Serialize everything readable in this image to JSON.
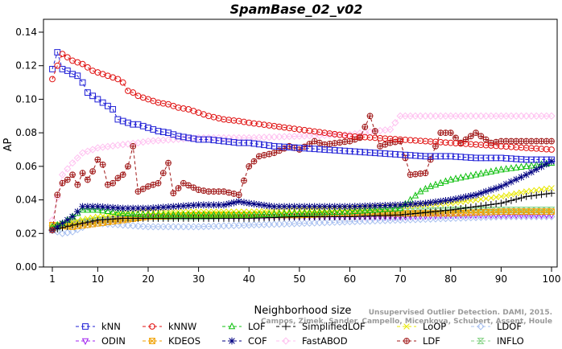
{
  "chart_data": {
    "type": "line",
    "title": "SpamBase_02_v02",
    "xlabel": "Neighborhood size",
    "ylabel": "AP",
    "xlim": [
      1,
      100
    ],
    "ylim": [
      0.0,
      0.14
    ],
    "xticks": [
      "1",
      "10",
      "20",
      "30",
      "40",
      "50",
      "60",
      "70",
      "80",
      "90",
      "100"
    ],
    "yticks": [
      "0.00",
      "0.02",
      "0.04",
      "0.06",
      "0.08",
      "0.10",
      "0.12",
      "0.14"
    ],
    "watermark": [
      "Campos, Zimek, Sander, Campello, Micenkova, Schubert, Assent, Houle",
      "Unsupervised Outlier Detection. DAMI, 2015."
    ],
    "legend_position": "bottom",
    "series": [
      {
        "name": "kNN",
        "color": "#1f1fd6",
        "marker": "square",
        "points": [
          [
            1,
            0.118
          ],
          [
            2,
            0.128
          ],
          [
            3,
            0.118
          ],
          [
            4,
            0.117
          ],
          [
            5,
            0.115
          ],
          [
            6,
            0.114
          ],
          [
            7,
            0.11
          ],
          [
            8,
            0.104
          ],
          [
            9,
            0.102
          ],
          [
            10,
            0.1
          ],
          [
            11,
            0.098
          ],
          [
            12,
            0.096
          ],
          [
            13,
            0.094
          ],
          [
            14,
            0.088
          ],
          [
            15,
            0.087
          ],
          [
            16,
            0.086
          ],
          [
            17,
            0.085
          ],
          [
            18,
            0.085
          ],
          [
            19,
            0.084
          ],
          [
            20,
            0.083
          ],
          [
            22,
            0.081
          ],
          [
            24,
            0.08
          ],
          [
            26,
            0.078
          ],
          [
            28,
            0.077
          ],
          [
            30,
            0.076
          ],
          [
            32,
            0.076
          ],
          [
            35,
            0.075
          ],
          [
            38,
            0.074
          ],
          [
            40,
            0.074
          ],
          [
            45,
            0.072
          ],
          [
            50,
            0.071
          ],
          [
            55,
            0.07
          ],
          [
            60,
            0.069
          ],
          [
            65,
            0.068
          ],
          [
            70,
            0.067
          ],
          [
            75,
            0.066
          ],
          [
            80,
            0.066
          ],
          [
            85,
            0.065
          ],
          [
            90,
            0.065
          ],
          [
            95,
            0.064
          ],
          [
            100,
            0.064
          ]
        ]
      },
      {
        "name": "kNNW",
        "color": "#e01010",
        "marker": "circle",
        "points": [
          [
            1,
            0.112
          ],
          [
            2,
            0.12
          ],
          [
            3,
            0.127
          ],
          [
            4,
            0.125
          ],
          [
            5,
            0.123
          ],
          [
            6,
            0.122
          ],
          [
            7,
            0.121
          ],
          [
            8,
            0.119
          ],
          [
            9,
            0.117
          ],
          [
            10,
            0.116
          ],
          [
            11,
            0.115
          ],
          [
            12,
            0.114
          ],
          [
            13,
            0.113
          ],
          [
            14,
            0.112
          ],
          [
            15,
            0.11
          ],
          [
            16,
            0.105
          ],
          [
            17,
            0.104
          ],
          [
            18,
            0.102
          ],
          [
            19,
            0.101
          ],
          [
            20,
            0.1
          ],
          [
            22,
            0.098
          ],
          [
            24,
            0.097
          ],
          [
            26,
            0.095
          ],
          [
            28,
            0.094
          ],
          [
            30,
            0.092
          ],
          [
            32,
            0.09
          ],
          [
            35,
            0.088
          ],
          [
            38,
            0.087
          ],
          [
            40,
            0.086
          ],
          [
            45,
            0.084
          ],
          [
            50,
            0.082
          ],
          [
            55,
            0.08
          ],
          [
            60,
            0.078
          ],
          [
            65,
            0.077
          ],
          [
            70,
            0.076
          ],
          [
            75,
            0.075
          ],
          [
            80,
            0.074
          ],
          [
            85,
            0.073
          ],
          [
            90,
            0.072
          ],
          [
            95,
            0.071
          ],
          [
            100,
            0.07
          ]
        ]
      },
      {
        "name": "LOF",
        "color": "#10c010",
        "marker": "triangle-up",
        "points": [
          [
            1,
            0.024
          ],
          [
            3,
            0.026
          ],
          [
            5,
            0.03
          ],
          [
            7,
            0.034
          ],
          [
            10,
            0.034
          ],
          [
            15,
            0.032
          ],
          [
            20,
            0.031
          ],
          [
            30,
            0.031
          ],
          [
            40,
            0.031
          ],
          [
            50,
            0.032
          ],
          [
            60,
            0.033
          ],
          [
            70,
            0.035
          ],
          [
            72,
            0.04
          ],
          [
            74,
            0.045
          ],
          [
            76,
            0.048
          ],
          [
            80,
            0.052
          ],
          [
            85,
            0.055
          ],
          [
            90,
            0.058
          ],
          [
            95,
            0.06
          ],
          [
            100,
            0.062
          ]
        ]
      },
      {
        "name": "SimplifiedLOF",
        "color": "#000000",
        "marker": "plus",
        "points": [
          [
            1,
            0.022
          ],
          [
            5,
            0.025
          ],
          [
            10,
            0.028
          ],
          [
            15,
            0.029
          ],
          [
            20,
            0.029
          ],
          [
            30,
            0.029
          ],
          [
            40,
            0.029
          ],
          [
            50,
            0.03
          ],
          [
            60,
            0.03
          ],
          [
            70,
            0.031
          ],
          [
            80,
            0.034
          ],
          [
            85,
            0.036
          ],
          [
            90,
            0.038
          ],
          [
            95,
            0.042
          ],
          [
            100,
            0.044
          ]
        ]
      },
      {
        "name": "LoOP",
        "color": "#e8e800",
        "marker": "x",
        "points": [
          [
            1,
            0.024
          ],
          [
            5,
            0.027
          ],
          [
            10,
            0.03
          ],
          [
            15,
            0.032
          ],
          [
            20,
            0.033
          ],
          [
            30,
            0.033
          ],
          [
            40,
            0.033
          ],
          [
            50,
            0.034
          ],
          [
            60,
            0.035
          ],
          [
            70,
            0.036
          ],
          [
            80,
            0.038
          ],
          [
            90,
            0.042
          ],
          [
            95,
            0.045
          ],
          [
            100,
            0.047
          ]
        ]
      },
      {
        "name": "LDOF",
        "color": "#a8c0f0",
        "marker": "diamond",
        "points": [
          [
            1,
            0.022
          ],
          [
            3,
            0.02
          ],
          [
            5,
            0.021
          ],
          [
            8,
            0.025
          ],
          [
            10,
            0.026
          ],
          [
            15,
            0.025
          ],
          [
            20,
            0.024
          ],
          [
            30,
            0.024
          ],
          [
            40,
            0.025
          ],
          [
            50,
            0.026
          ],
          [
            60,
            0.027
          ],
          [
            70,
            0.028
          ],
          [
            80,
            0.029
          ],
          [
            90,
            0.03
          ],
          [
            100,
            0.03
          ]
        ]
      },
      {
        "name": "ODIN",
        "color": "#a020f0",
        "marker": "triangle-down",
        "points": [
          [
            1,
            0.023
          ],
          [
            5,
            0.026
          ],
          [
            10,
            0.028
          ],
          [
            15,
            0.029
          ],
          [
            20,
            0.03
          ],
          [
            30,
            0.03
          ],
          [
            40,
            0.03
          ],
          [
            50,
            0.03
          ],
          [
            60,
            0.03
          ],
          [
            70,
            0.03
          ],
          [
            80,
            0.031
          ],
          [
            90,
            0.031
          ],
          [
            100,
            0.031
          ]
        ]
      },
      {
        "name": "KDEOS",
        "color": "#f0a000",
        "marker": "square-x",
        "points": [
          [
            1,
            0.025
          ],
          [
            5,
            0.024
          ],
          [
            10,
            0.026
          ],
          [
            15,
            0.028
          ],
          [
            20,
            0.03
          ],
          [
            30,
            0.031
          ],
          [
            40,
            0.031
          ],
          [
            50,
            0.031
          ],
          [
            60,
            0.032
          ],
          [
            70,
            0.032
          ],
          [
            80,
            0.032
          ],
          [
            90,
            0.033
          ],
          [
            100,
            0.033
          ]
        ]
      },
      {
        "name": "COF",
        "color": "#000080",
        "marker": "star",
        "points": [
          [
            1,
            0.022
          ],
          [
            5,
            0.03
          ],
          [
            7,
            0.036
          ],
          [
            10,
            0.036
          ],
          [
            15,
            0.035
          ],
          [
            20,
            0.035
          ],
          [
            25,
            0.036
          ],
          [
            30,
            0.037
          ],
          [
            35,
            0.037
          ],
          [
            38,
            0.039
          ],
          [
            40,
            0.038
          ],
          [
            45,
            0.036
          ],
          [
            50,
            0.036
          ],
          [
            60,
            0.036
          ],
          [
            70,
            0.037
          ],
          [
            75,
            0.038
          ],
          [
            80,
            0.04
          ],
          [
            85,
            0.043
          ],
          [
            90,
            0.048
          ],
          [
            95,
            0.055
          ],
          [
            100,
            0.063
          ]
        ]
      },
      {
        "name": "FastABOD",
        "color": "#ffc0f0",
        "marker": "diamond",
        "points": [
          [
            1,
            0.028
          ],
          [
            3,
            0.055
          ],
          [
            5,
            0.062
          ],
          [
            7,
            0.068
          ],
          [
            10,
            0.071
          ],
          [
            15,
            0.073
          ],
          [
            18,
            0.074
          ],
          [
            20,
            0.075
          ],
          [
            25,
            0.076
          ],
          [
            30,
            0.077
          ],
          [
            40,
            0.077
          ],
          [
            50,
            0.078
          ],
          [
            60,
            0.079
          ],
          [
            68,
            0.082
          ],
          [
            70,
            0.09
          ],
          [
            80,
            0.09
          ],
          [
            90,
            0.09
          ],
          [
            100,
            0.09
          ]
        ]
      },
      {
        "name": "LDF",
        "color": "#a01818",
        "marker": "circle-plus",
        "points": [
          [
            1,
            0.022
          ],
          [
            2,
            0.043
          ],
          [
            3,
            0.05
          ],
          [
            4,
            0.052
          ],
          [
            5,
            0.055
          ],
          [
            6,
            0.049
          ],
          [
            7,
            0.056
          ],
          [
            8,
            0.052
          ],
          [
            9,
            0.057
          ],
          [
            10,
            0.064
          ],
          [
            11,
            0.061
          ],
          [
            12,
            0.049
          ],
          [
            13,
            0.05
          ],
          [
            14,
            0.053
          ],
          [
            15,
            0.055
          ],
          [
            16,
            0.06
          ],
          [
            17,
            0.072
          ],
          [
            18,
            0.045
          ],
          [
            20,
            0.048
          ],
          [
            22,
            0.05
          ],
          [
            24,
            0.062
          ],
          [
            25,
            0.044
          ],
          [
            27,
            0.05
          ],
          [
            30,
            0.046
          ],
          [
            32,
            0.045
          ],
          [
            35,
            0.045
          ],
          [
            38,
            0.043
          ],
          [
            40,
            0.06
          ],
          [
            42,
            0.066
          ],
          [
            45,
            0.068
          ],
          [
            48,
            0.072
          ],
          [
            50,
            0.07
          ],
          [
            53,
            0.075
          ],
          [
            55,
            0.073
          ],
          [
            60,
            0.075
          ],
          [
            62,
            0.077
          ],
          [
            64,
            0.09
          ],
          [
            66,
            0.072
          ],
          [
            68,
            0.074
          ],
          [
            70,
            0.075
          ],
          [
            72,
            0.055
          ],
          [
            75,
            0.056
          ],
          [
            78,
            0.08
          ],
          [
            80,
            0.08
          ],
          [
            82,
            0.074
          ],
          [
            85,
            0.08
          ],
          [
            88,
            0.074
          ],
          [
            90,
            0.075
          ],
          [
            95,
            0.075
          ],
          [
            100,
            0.075
          ]
        ]
      },
      {
        "name": "INFLO",
        "color": "#80d080",
        "marker": "hourglass",
        "points": [
          [
            1,
            0.023
          ],
          [
            5,
            0.026
          ],
          [
            10,
            0.028
          ],
          [
            15,
            0.029
          ],
          [
            20,
            0.03
          ],
          [
            30,
            0.03
          ],
          [
            40,
            0.031
          ],
          [
            50,
            0.031
          ],
          [
            60,
            0.032
          ],
          [
            70,
            0.033
          ],
          [
            80,
            0.034
          ],
          [
            90,
            0.034
          ],
          [
            100,
            0.034
          ]
        ]
      }
    ]
  }
}
